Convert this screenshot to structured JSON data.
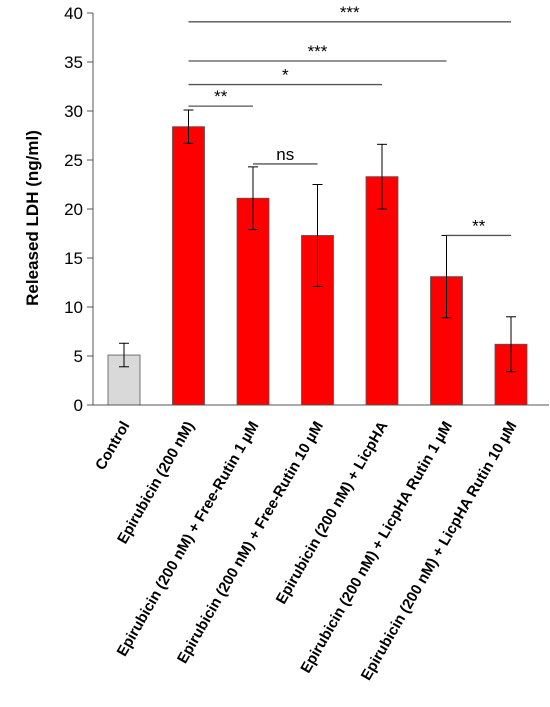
{
  "chart_data": {
    "type": "bar",
    "title": "",
    "xlabel": "",
    "ylabel": "Released LDH (ng/ml)",
    "ylim": [
      0,
      40
    ],
    "yticks": [
      0,
      5,
      10,
      15,
      20,
      25,
      30,
      35,
      40
    ],
    "grid": false,
    "categories": [
      "Control",
      "Epirubicin (200 nM)",
      "Epirubicin (200 nM) + Free-Rutin 1 µM",
      "Epirubicin (200 nM) + Free-Rutin 10 µM",
      "Epirubicin (200 nM) + LicpHA",
      "Epirubicin (200 nM) + LicpHA Rutin 1 µM",
      "Epirubicin (200 nM) + LicpHA Rutin 10 µM"
    ],
    "values": [
      5.1,
      28.4,
      21.1,
      17.3,
      23.3,
      13.1,
      6.2
    ],
    "errors": [
      1.2,
      1.7,
      3.2,
      5.2,
      3.3,
      4.2,
      2.8
    ],
    "colors": [
      "#d9d9d9",
      "#ff0000",
      "#ff0000",
      "#ff0000",
      "#ff0000",
      "#ff0000",
      "#ff0000"
    ],
    "significance": [
      {
        "from": 1,
        "to": 6,
        "y": 39.1,
        "label": "***"
      },
      {
        "from": 1,
        "to": 5,
        "y": 35.1,
        "label": "***"
      },
      {
        "from": 1,
        "to": 4,
        "y": 32.7,
        "label": "*"
      },
      {
        "from": 1,
        "to": 2,
        "y": 30.5,
        "label": "**"
      },
      {
        "from": 2,
        "to": 3,
        "y": 24.6,
        "label": "ns"
      },
      {
        "from": 5,
        "to": 6,
        "y": 17.3,
        "label": "**"
      }
    ]
  }
}
